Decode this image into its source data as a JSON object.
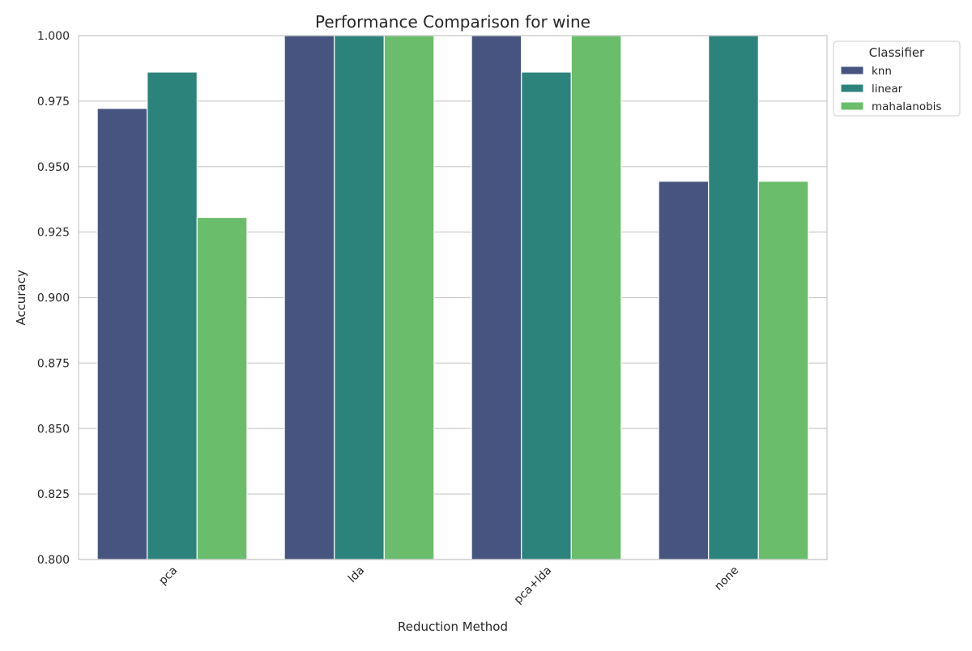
{
  "chart_data": {
    "type": "bar",
    "title": "Performance Comparison for wine",
    "xlabel": "Reduction Method",
    "ylabel": "Accuracy",
    "categories": [
      "pca",
      "lda",
      "pca+lda",
      "none"
    ],
    "ylim": [
      0.8,
      1.0
    ],
    "yticks": [
      "0.800",
      "0.825",
      "0.850",
      "0.875",
      "0.900",
      "0.925",
      "0.950",
      "0.975",
      "1.000"
    ],
    "grid": true,
    "legend": {
      "title": "Classifier",
      "placement": "outside top-right"
    },
    "series": [
      {
        "name": "knn",
        "color": "#46547f",
        "values": [
          0.9722,
          1.0,
          1.0,
          0.9444
        ]
      },
      {
        "name": "linear",
        "color": "#2c837c",
        "values": [
          0.9861,
          1.0,
          0.9861,
          1.0
        ]
      },
      {
        "name": "mahalanobis",
        "color": "#6abd6b",
        "values": [
          0.9306,
          1.0,
          1.0,
          0.9444
        ]
      }
    ]
  }
}
